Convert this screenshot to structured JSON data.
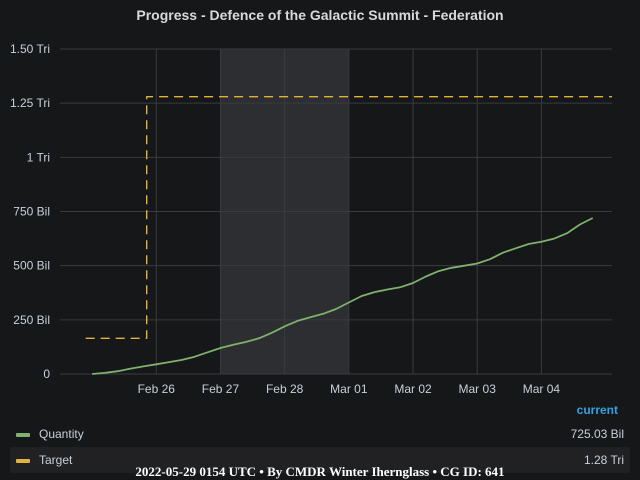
{
  "chart_data": {
    "type": "line",
    "title": "Progress - Defence of the Galactic Summit - Federation",
    "x_ticks": [
      "Feb 26",
      "Feb 27",
      "Feb 28",
      "Mar 01",
      "Mar 02",
      "Mar 03",
      "Mar 04"
    ],
    "y_ticks": [
      "0",
      "250 Bil",
      "500 Bil",
      "750 Bil",
      "1 Tri",
      "1.25 Tri",
      "1.50 Tri"
    ],
    "ylim": [
      0,
      1.5
    ],
    "y_unit": "trillion",
    "xlim_days": [
      -0.5,
      8.1
    ],
    "x_tick_days": [
      1,
      2,
      3,
      4,
      5,
      6,
      7
    ],
    "shaded_range_days": [
      2,
      4
    ],
    "grid": true,
    "legend_position": "bottom",
    "series": [
      {
        "name": "Quantity",
        "color": "#7eb26d",
        "style": "solid",
        "current": "725.03 Bil",
        "x_days": [
          0.0,
          0.2,
          0.4,
          0.6,
          0.8,
          1.0,
          1.2,
          1.4,
          1.6,
          1.8,
          2.0,
          2.2,
          2.4,
          2.6,
          2.8,
          3.0,
          3.2,
          3.4,
          3.6,
          3.8,
          4.0,
          4.2,
          4.4,
          4.6,
          4.8,
          5.0,
          5.2,
          5.4,
          5.6,
          5.8,
          6.0,
          6.2,
          6.4,
          6.6,
          6.8,
          7.0,
          7.2,
          7.4,
          7.6,
          7.8
        ],
        "y": [
          0.0,
          0.005,
          0.013,
          0.025,
          0.035,
          0.045,
          0.055,
          0.065,
          0.08,
          0.1,
          0.12,
          0.135,
          0.148,
          0.165,
          0.19,
          0.22,
          0.245,
          0.262,
          0.278,
          0.3,
          0.33,
          0.36,
          0.378,
          0.39,
          0.4,
          0.42,
          0.45,
          0.475,
          0.49,
          0.5,
          0.51,
          0.53,
          0.56,
          0.58,
          0.6,
          0.61,
          0.625,
          0.65,
          0.69,
          0.72
        ]
      },
      {
        "name": "Target",
        "color": "#e0b43c",
        "style": "dashed",
        "current": "1.28 Tri",
        "x_days": [
          -0.1,
          0.85,
          0.85,
          8.3
        ],
        "y": [
          0.165,
          0.165,
          1.28,
          1.28
        ]
      }
    ]
  },
  "legend": {
    "header": "current"
  },
  "footer": "2022-05-29 0154 UTC • By CMDR Winter Iherngl​ass • CG ID: 641"
}
